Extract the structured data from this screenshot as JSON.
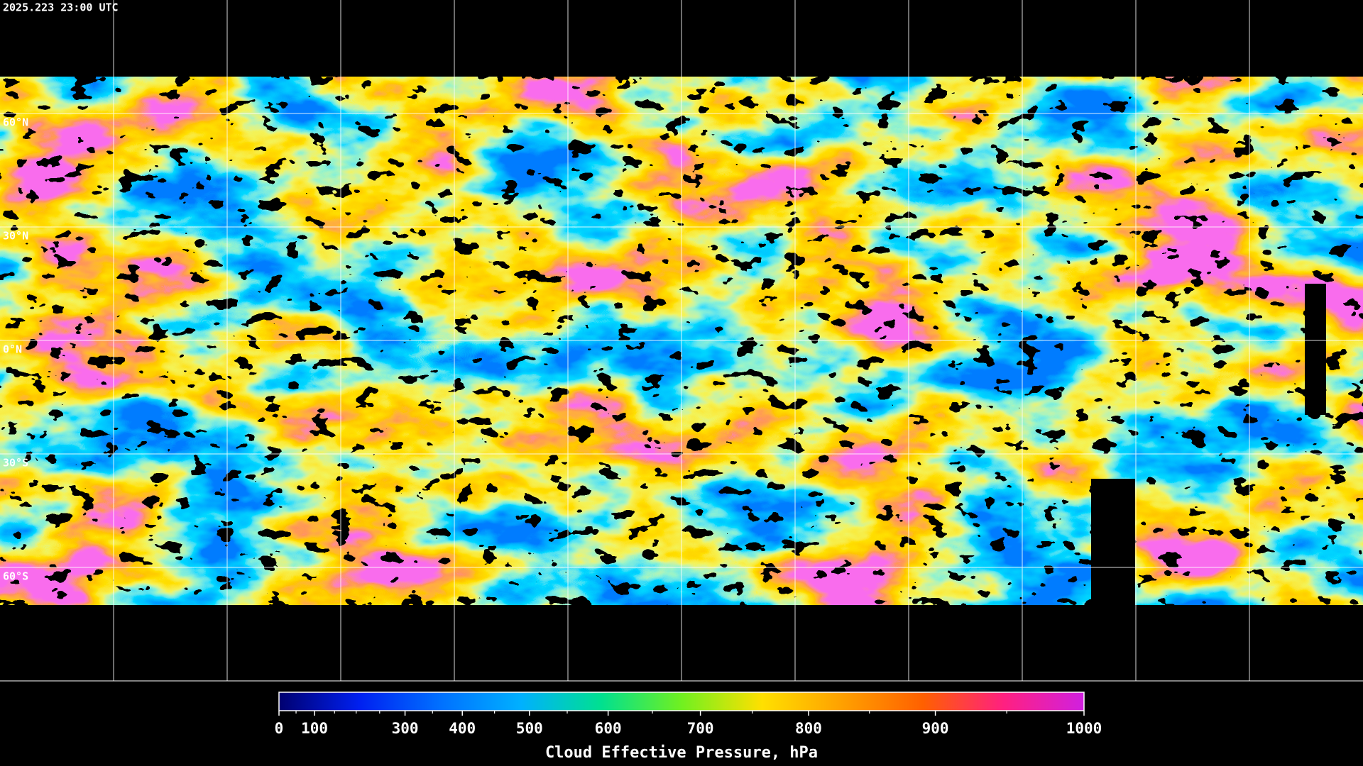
{
  "header": {
    "timestamp": "2025.223 23:00 UTC"
  },
  "map": {
    "lat_labels": [
      "60°N",
      "30°N",
      "0°N",
      "30°S",
      "60°S"
    ]
  },
  "colorbar": {
    "label": "Cloud Effective Pressure, hPa",
    "range": [
      0,
      1000
    ],
    "scale": "exponential",
    "ticks": [
      0,
      100,
      300,
      400,
      500,
      600,
      700,
      800,
      900,
      1000
    ],
    "minor_ticks": [
      50,
      150,
      200,
      250,
      350,
      450,
      550,
      650,
      750,
      850,
      950
    ],
    "colors": [
      "#000070",
      "#0020f0",
      "#0070ff",
      "#00b0ff",
      "#00e090",
      "#70f020",
      "#ffe000",
      "#ffa000",
      "#ff6000",
      "#ff2080",
      "#d020e0"
    ]
  }
}
